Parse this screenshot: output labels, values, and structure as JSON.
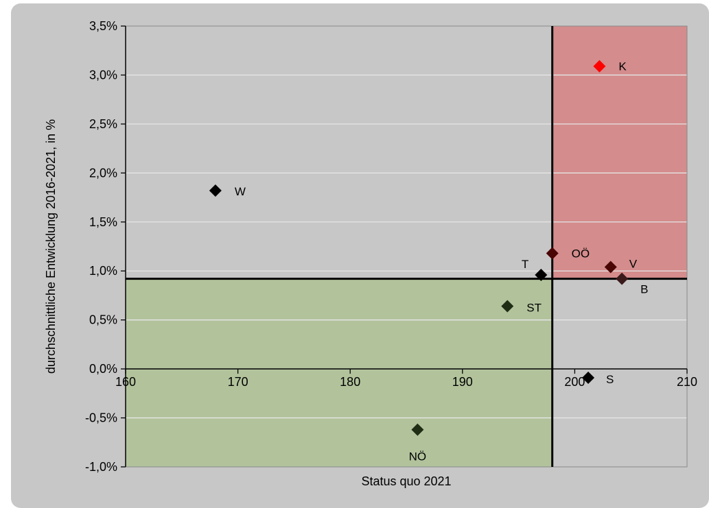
{
  "chart_data": {
    "type": "scatter",
    "xlabel": "Status quo 2021",
    "ylabel": "durchschnittliche Entwicklung 2016-2021, in %",
    "xlim": [
      160,
      210
    ],
    "ylim": [
      -1.0,
      3.5
    ],
    "x_ticks": [
      "160",
      "170",
      "180",
      "190",
      "200",
      "210"
    ],
    "x_tick_values": [
      160,
      170,
      180,
      190,
      200,
      210
    ],
    "y_ticks": [
      "3,5%",
      "3,0%",
      "2,5%",
      "2,0%",
      "1,5%",
      "1,0%",
      "0,5%",
      "0,0%",
      "-0,5%",
      "-1,0%"
    ],
    "y_tick_values": [
      3.5,
      3.0,
      2.5,
      2.0,
      1.5,
      1.0,
      0.5,
      0.0,
      -0.5,
      -1.0
    ],
    "grid": "horizontal",
    "reference_lines": {
      "x": 198,
      "y": 0.92
    },
    "regions": [
      {
        "x_from": 198,
        "x_to": 210,
        "y_from": 0.92,
        "y_to": 3.5,
        "color": "#d48c8c"
      },
      {
        "x_from": 160,
        "x_to": 198,
        "y_from": -1.0,
        "y_to": 0.92,
        "color": "#b2c39c"
      }
    ],
    "points": [
      {
        "label": "K",
        "x": 202.2,
        "y": 3.09,
        "color": "#ff0000"
      },
      {
        "label": "W",
        "x": 168.0,
        "y": 1.82,
        "color": "#000000"
      },
      {
        "label": "OÖ",
        "x": 198.0,
        "y": 1.18,
        "color": "#4a0505"
      },
      {
        "label": "T",
        "x": 197.0,
        "y": 0.96,
        "color": "#000000"
      },
      {
        "label": "V",
        "x": 203.2,
        "y": 1.04,
        "color": "#4a0505"
      },
      {
        "label": "B",
        "x": 204.2,
        "y": 0.92,
        "color": "#3a1a1a"
      },
      {
        "label": "ST",
        "x": 194.0,
        "y": 0.64,
        "color": "#1f2d14"
      },
      {
        "label": "S",
        "x": 201.2,
        "y": -0.09,
        "color": "#000000"
      },
      {
        "label": "NÖ",
        "x": 186.0,
        "y": -0.62,
        "color": "#1f2d14"
      }
    ]
  }
}
